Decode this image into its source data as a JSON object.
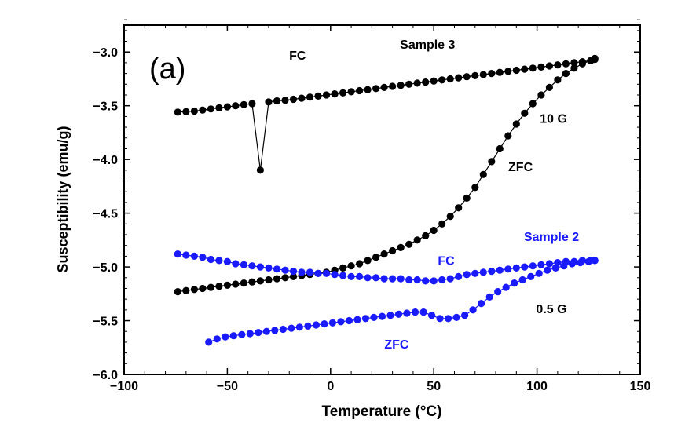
{
  "chart_data": {
    "type": "scatter",
    "panel_label": "(a)",
    "xlabel": "Temperature (°C)",
    "ylabel": "Susceptibility (emu/g)",
    "xlim": [
      -100,
      150
    ],
    "ylim": [
      -6.0,
      -2.75
    ],
    "x_ticks": [
      -100,
      -50,
      0,
      50,
      100,
      150
    ],
    "y_ticks": [
      -6.0,
      -5.5,
      -5.0,
      -4.5,
      -4.0,
      -3.5,
      -3.0
    ],
    "x_tick_labels": [
      "−100",
      "−50",
      "0",
      "50",
      "100",
      "150"
    ],
    "y_tick_labels": [
      "−6.0",
      "−5.5",
      "−5.0",
      "−4.5",
      "−4.0",
      "−3.5",
      "−3.0"
    ],
    "grid": false,
    "legend": "none",
    "series": [
      {
        "name": "",
        "color": "#000000",
        "x": [
          -74,
          -70,
          -66,
          -62,
          -58,
          -54,
          -50,
          -46,
          -42,
          -38,
          -34,
          -30,
          -26,
          -22,
          -18,
          -14,
          -10,
          -6,
          -2,
          2,
          6,
          10,
          14,
          18,
          22,
          26,
          30,
          34,
          38,
          42,
          46,
          50,
          54,
          58,
          62,
          66,
          70,
          74,
          78,
          82,
          86,
          90,
          94,
          98,
          102,
          106,
          110,
          114,
          118,
          122,
          126,
          128
        ],
        "y": [
          -3.56,
          -3.555,
          -3.55,
          -3.54,
          -3.53,
          -3.52,
          -3.51,
          -3.5,
          -3.49,
          -3.48,
          -4.1,
          -3.465,
          -3.455,
          -3.45,
          -3.44,
          -3.43,
          -3.42,
          -3.41,
          -3.4,
          -3.39,
          -3.38,
          -3.37,
          -3.36,
          -3.35,
          -3.34,
          -3.33,
          -3.32,
          -3.31,
          -3.3,
          -3.29,
          -3.28,
          -3.27,
          -3.26,
          -3.25,
          -3.24,
          -3.23,
          -3.22,
          -3.21,
          -3.2,
          -3.19,
          -3.18,
          -3.17,
          -3.16,
          -3.15,
          -3.14,
          -3.13,
          -3.12,
          -3.11,
          -3.1,
          -3.09,
          -3.08,
          -3.07
        ]
      },
      {
        "name": "",
        "color": "#000000",
        "x": [
          -74,
          -70,
          -66,
          -62,
          -58,
          -54,
          -50,
          -46,
          -42,
          -38,
          -34,
          -30,
          -26,
          -22,
          -18,
          -14,
          -10,
          -6,
          -2,
          2,
          6,
          10,
          14,
          18,
          22,
          26,
          30,
          34,
          38,
          42,
          46,
          50,
          54,
          58,
          62,
          66,
          70,
          74,
          78,
          82,
          86,
          90,
          94,
          98,
          102,
          106,
          110,
          114,
          118,
          122,
          126,
          128
        ],
        "y": [
          -5.23,
          -5.22,
          -5.21,
          -5.2,
          -5.19,
          -5.18,
          -5.17,
          -5.16,
          -5.15,
          -5.14,
          -5.13,
          -5.12,
          -5.11,
          -5.1,
          -5.09,
          -5.08,
          -5.07,
          -5.06,
          -5.05,
          -5.03,
          -5.01,
          -4.99,
          -4.97,
          -4.94,
          -4.91,
          -4.88,
          -4.85,
          -4.82,
          -4.79,
          -4.75,
          -4.71,
          -4.66,
          -4.6,
          -4.53,
          -4.45,
          -4.36,
          -4.26,
          -4.14,
          -4.02,
          -3.9,
          -3.78,
          -3.67,
          -3.57,
          -3.48,
          -3.4,
          -3.33,
          -3.26,
          -3.2,
          -3.15,
          -3.11,
          -3.08,
          -3.06
        ]
      },
      {
        "name": "",
        "color": "#1a1aff",
        "x": [
          -74,
          -70,
          -66,
          -62,
          -58,
          -54,
          -50,
          -46,
          -42,
          -38,
          -34,
          -30,
          -26,
          -22,
          -18,
          -14,
          -10,
          -6,
          -2,
          2,
          6,
          10,
          14,
          18,
          22,
          26,
          30,
          34,
          38,
          42,
          46,
          50,
          54,
          58,
          62,
          66,
          70,
          74,
          78,
          82,
          86,
          90,
          94,
          98,
          102,
          106,
          110,
          114,
          118,
          122,
          126,
          128
        ],
        "y": [
          -4.88,
          -4.89,
          -4.9,
          -4.91,
          -4.93,
          -4.94,
          -4.95,
          -4.97,
          -4.98,
          -4.99,
          -5.0,
          -5.01,
          -5.02,
          -5.03,
          -5.04,
          -5.05,
          -5.05,
          -5.06,
          -5.06,
          -5.07,
          -5.08,
          -5.09,
          -5.09,
          -5.1,
          -5.1,
          -5.11,
          -5.11,
          -5.11,
          -5.12,
          -5.12,
          -5.13,
          -5.13,
          -5.12,
          -5.11,
          -5.09,
          -5.07,
          -5.06,
          -5.05,
          -5.04,
          -5.03,
          -5.02,
          -5.01,
          -5.0,
          -4.99,
          -4.98,
          -4.97,
          -4.96,
          -4.95,
          -4.95,
          -4.94,
          -4.94,
          -4.94
        ]
      },
      {
        "name": "",
        "color": "#1a1aff",
        "x": [
          -59,
          -55,
          -51,
          -47,
          -43,
          -39,
          -35,
          -31,
          -27,
          -23,
          -19,
          -15,
          -11,
          -7,
          -3,
          1,
          5,
          9,
          13,
          17,
          21,
          25,
          29,
          33,
          37,
          41,
          45,
          49,
          53,
          57,
          61,
          65,
          69,
          73,
          77,
          81,
          85,
          89,
          93,
          97,
          101,
          105,
          109,
          113,
          117,
          121,
          125,
          128
        ],
        "y": [
          -5.7,
          -5.67,
          -5.65,
          -5.64,
          -5.63,
          -5.62,
          -5.61,
          -5.6,
          -5.59,
          -5.58,
          -5.57,
          -5.56,
          -5.55,
          -5.54,
          -5.53,
          -5.52,
          -5.51,
          -5.5,
          -5.49,
          -5.48,
          -5.47,
          -5.46,
          -5.45,
          -5.44,
          -5.43,
          -5.42,
          -5.42,
          -5.45,
          -5.48,
          -5.48,
          -5.47,
          -5.45,
          -5.4,
          -5.34,
          -5.28,
          -5.23,
          -5.19,
          -5.15,
          -5.12,
          -5.09,
          -5.06,
          -5.03,
          -5.01,
          -4.99,
          -4.97,
          -4.96,
          -4.95,
          -4.94
        ]
      }
    ],
    "annotations": [
      {
        "text": "Sample 3",
        "x": 47,
        "y": -2.97,
        "color": "#000000"
      },
      {
        "text": "FC",
        "x": -16,
        "y": -3.07,
        "color": "#000000"
      },
      {
        "text": "10 G",
        "x": 108,
        "y": -3.66,
        "color": "#000000"
      },
      {
        "text": "ZFC",
        "x": 92,
        "y": -4.11,
        "color": "#000000"
      },
      {
        "text": "Sample 2",
        "x": 107,
        "y": -4.76,
        "color": "#1a1aff"
      },
      {
        "text": "FC",
        "x": 56,
        "y": -4.98,
        "color": "#1a1aff"
      },
      {
        "text": "0.5 G",
        "x": 107,
        "y": -5.43,
        "color": "#000000"
      },
      {
        "text": "ZFC",
        "x": 32,
        "y": -5.76,
        "color": "#1a1aff"
      }
    ]
  }
}
